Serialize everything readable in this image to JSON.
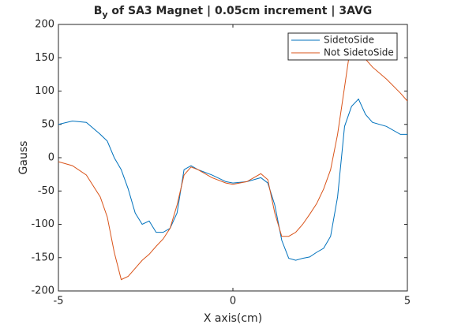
{
  "chart_data": {
    "type": "line",
    "title": {
      "base": "B",
      "subscript": "y",
      "rest": " of SA3 Magnet | 0.05cm increment | 3AVG"
    },
    "x_label": "X axis(cm)",
    "y_label": "Gauss",
    "x": [
      -5,
      -4.6,
      -4.2,
      -3.8,
      -3.6,
      -3.4,
      -3.2,
      -3.0,
      -2.8,
      -2.6,
      -2.4,
      -2.2,
      -2.0,
      -1.8,
      -1.6,
      -1.4,
      -1.2,
      -1.0,
      -0.6,
      -0.2,
      0,
      0.4,
      0.8,
      1.0,
      1.2,
      1.4,
      1.6,
      1.8,
      2.0,
      2.2,
      2.4,
      2.6,
      2.8,
      3.0,
      3.2,
      3.4,
      3.6,
      3.8,
      4.0,
      4.4,
      4.8,
      5.0
    ],
    "series": [
      {
        "name": "SidetoSide",
        "color": "#0072bd",
        "values": [
          50,
          55,
          53,
          35,
          25,
          0,
          -18,
          -47,
          -83,
          -100,
          -95,
          -112,
          -112,
          -106,
          -83,
          -18,
          -12,
          -18,
          -26,
          -36,
          -38,
          -36,
          -30,
          -38,
          -71,
          -124,
          -151,
          -154,
          -151,
          -149,
          -142,
          -136,
          -118,
          -59,
          47,
          77,
          88,
          65,
          53,
          47,
          35,
          35
        ]
      },
      {
        "name": "Not SidetoSide",
        "color": "#d95319",
        "values": [
          -6,
          -12,
          -26,
          -59,
          -89,
          -142,
          -183,
          -178,
          -166,
          -154,
          -145,
          -133,
          -122,
          -106,
          -71,
          -26,
          -14,
          -18,
          -30,
          -38,
          -40,
          -36,
          -24,
          -33,
          -83,
          -118,
          -118,
          -112,
          -100,
          -85,
          -69,
          -47,
          -18,
          35,
          106,
          178,
          166,
          148,
          136,
          118,
          97,
          85
        ]
      }
    ],
    "xlim": [
      -5,
      5
    ],
    "xticks": [
      -5,
      0,
      5
    ],
    "ylim": [
      -200,
      200
    ],
    "yticks": [
      -200,
      -150,
      -100,
      -50,
      0,
      50,
      100,
      150,
      200
    ],
    "grid": false,
    "legend": "northeast"
  }
}
